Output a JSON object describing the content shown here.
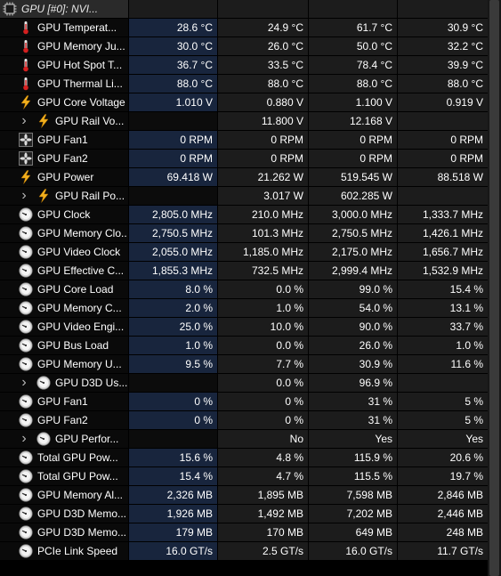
{
  "header": {
    "label": "GPU [#0]: NVI...",
    "icon": "chip-icon"
  },
  "rows": [
    {
      "label": "GPU Temperat...",
      "icon": "thermometer-icon",
      "indent": 0,
      "expandable": false,
      "values": [
        "28.6 °C",
        "24.9 °C",
        "61.7 °C",
        "30.9 °C"
      ]
    },
    {
      "label": "GPU Memory Ju...",
      "icon": "thermometer-icon",
      "indent": 0,
      "expandable": false,
      "values": [
        "30.0 °C",
        "26.0 °C",
        "50.0 °C",
        "32.2 °C"
      ]
    },
    {
      "label": "GPU Hot Spot T...",
      "icon": "thermometer-icon",
      "indent": 0,
      "expandable": false,
      "values": [
        "36.7 °C",
        "33.5 °C",
        "78.4 °C",
        "39.9 °C"
      ]
    },
    {
      "label": "GPU Thermal Li...",
      "icon": "thermometer-icon",
      "indent": 0,
      "expandable": false,
      "values": [
        "88.0 °C",
        "88.0 °C",
        "88.0 °C",
        "88.0 °C"
      ]
    },
    {
      "label": "GPU Core Voltage",
      "icon": "lightning-icon",
      "indent": 0,
      "expandable": false,
      "values": [
        "1.010 V",
        "0.880 V",
        "1.100 V",
        "0.919 V"
      ]
    },
    {
      "label": "GPU Rail Vo...",
      "icon": "lightning-icon",
      "indent": 1,
      "expandable": true,
      "values": [
        "",
        "11.800 V",
        "12.168 V",
        ""
      ]
    },
    {
      "label": "GPU Fan1",
      "icon": "fan-icon",
      "indent": 0,
      "expandable": false,
      "values": [
        "0 RPM",
        "0 RPM",
        "0 RPM",
        "0 RPM"
      ]
    },
    {
      "label": "GPU Fan2",
      "icon": "fan-icon",
      "indent": 0,
      "expandable": false,
      "values": [
        "0 RPM",
        "0 RPM",
        "0 RPM",
        "0 RPM"
      ]
    },
    {
      "label": "GPU Power",
      "icon": "lightning-icon",
      "indent": 0,
      "expandable": false,
      "values": [
        "69.418 W",
        "21.262 W",
        "519.545 W",
        "88.518 W"
      ]
    },
    {
      "label": "GPU Rail Po...",
      "icon": "lightning-icon",
      "indent": 1,
      "expandable": true,
      "values": [
        "",
        "3.017 W",
        "602.285 W",
        ""
      ]
    },
    {
      "label": "GPU Clock",
      "icon": "gauge-icon",
      "indent": 0,
      "expandable": false,
      "values": [
        "2,805.0 MHz",
        "210.0 MHz",
        "3,000.0 MHz",
        "1,333.7 MHz"
      ]
    },
    {
      "label": "GPU Memory Clo...",
      "icon": "gauge-icon",
      "indent": 0,
      "expandable": false,
      "values": [
        "2,750.5 MHz",
        "101.3 MHz",
        "2,750.5 MHz",
        "1,426.1 MHz"
      ]
    },
    {
      "label": "GPU Video Clock",
      "icon": "gauge-icon",
      "indent": 0,
      "expandable": false,
      "values": [
        "2,055.0 MHz",
        "1,185.0 MHz",
        "2,175.0 MHz",
        "1,656.7 MHz"
      ]
    },
    {
      "label": "GPU Effective C...",
      "icon": "gauge-icon",
      "indent": 0,
      "expandable": false,
      "values": [
        "1,855.3 MHz",
        "732.5 MHz",
        "2,999.4 MHz",
        "1,532.9 MHz"
      ]
    },
    {
      "label": "GPU Core Load",
      "icon": "gauge-icon",
      "indent": 0,
      "expandable": false,
      "values": [
        "8.0 %",
        "0.0 %",
        "99.0 %",
        "15.4 %"
      ]
    },
    {
      "label": "GPU Memory C...",
      "icon": "gauge-icon",
      "indent": 0,
      "expandable": false,
      "values": [
        "2.0 %",
        "1.0 %",
        "54.0 %",
        "13.1 %"
      ]
    },
    {
      "label": "GPU Video Engi...",
      "icon": "gauge-icon",
      "indent": 0,
      "expandable": false,
      "values": [
        "25.0 %",
        "10.0 %",
        "90.0 %",
        "33.7 %"
      ]
    },
    {
      "label": "GPU Bus Load",
      "icon": "gauge-icon",
      "indent": 0,
      "expandable": false,
      "values": [
        "1.0 %",
        "0.0 %",
        "26.0 %",
        "1.0 %"
      ]
    },
    {
      "label": "GPU Memory U...",
      "icon": "gauge-icon",
      "indent": 0,
      "expandable": false,
      "values": [
        "9.5 %",
        "7.7 %",
        "30.9 %",
        "11.6 %"
      ]
    },
    {
      "label": "GPU D3D Us...",
      "icon": "gauge-icon",
      "indent": 1,
      "expandable": true,
      "values": [
        "",
        "0.0 %",
        "96.9 %",
        ""
      ]
    },
    {
      "label": "GPU Fan1",
      "icon": "gauge-icon",
      "indent": 0,
      "expandable": false,
      "values": [
        "0 %",
        "0 %",
        "31 %",
        "5 %"
      ]
    },
    {
      "label": "GPU Fan2",
      "icon": "gauge-icon",
      "indent": 0,
      "expandable": false,
      "values": [
        "0 %",
        "0 %",
        "31 %",
        "5 %"
      ]
    },
    {
      "label": "GPU Perfor...",
      "icon": "gauge-icon",
      "indent": 1,
      "expandable": true,
      "values": [
        "",
        "No",
        "Yes",
        "Yes"
      ]
    },
    {
      "label": "Total GPU Pow...",
      "icon": "gauge-icon",
      "indent": 0,
      "expandable": false,
      "values": [
        "15.6 %",
        "4.8 %",
        "115.9 %",
        "20.6 %"
      ]
    },
    {
      "label": "Total GPU Pow...",
      "icon": "gauge-icon",
      "indent": 0,
      "expandable": false,
      "values": [
        "15.4 %",
        "4.7 %",
        "115.5 %",
        "19.7 %"
      ]
    },
    {
      "label": "GPU Memory Al...",
      "icon": "gauge-icon",
      "indent": 0,
      "expandable": false,
      "values": [
        "2,326 MB",
        "1,895 MB",
        "7,598 MB",
        "2,846 MB"
      ]
    },
    {
      "label": "GPU D3D Memo...",
      "icon": "gauge-icon",
      "indent": 0,
      "expandable": false,
      "values": [
        "1,926 MB",
        "1,492 MB",
        "7,202 MB",
        "2,446 MB"
      ]
    },
    {
      "label": "GPU D3D Memo...",
      "icon": "gauge-icon",
      "indent": 0,
      "expandable": false,
      "values": [
        "179 MB",
        "170 MB",
        "649 MB",
        "248 MB"
      ]
    },
    {
      "label": "PCIe Link Speed",
      "icon": "gauge-icon",
      "indent": 0,
      "expandable": false,
      "values": [
        "16.0 GT/s",
        "2.5 GT/s",
        "16.0 GT/s",
        "11.7 GT/s"
      ]
    }
  ]
}
